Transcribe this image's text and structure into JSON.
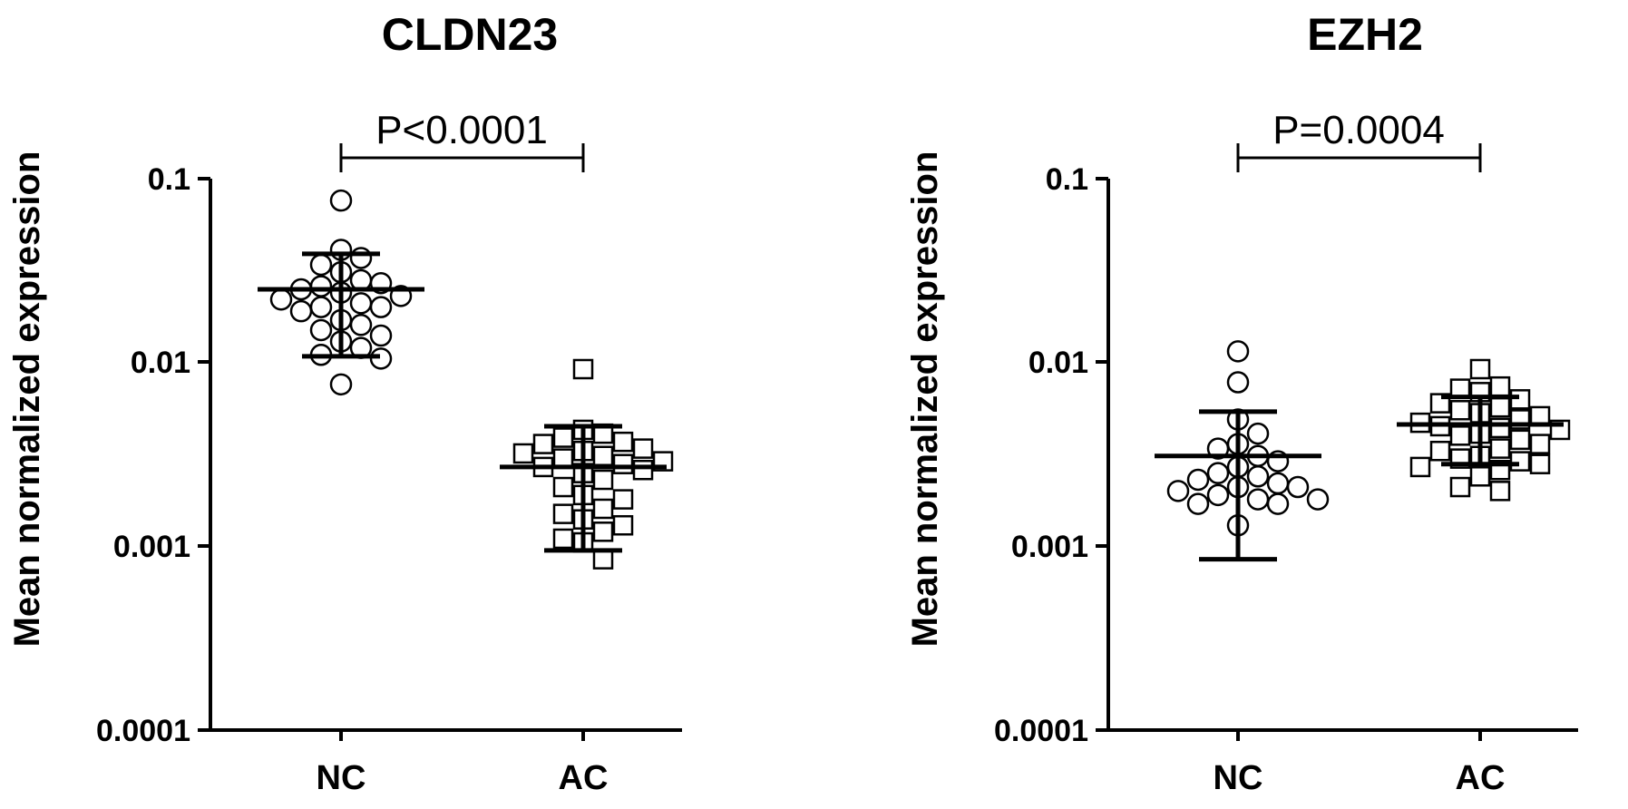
{
  "chart_data": [
    {
      "type": "scatter",
      "title": "CLDN23",
      "ylabel": "Mean normalized expression",
      "yscale": "log",
      "ylim": [
        0.0001,
        0.1
      ],
      "yticks": [
        "0.1",
        "0.01",
        "0.001",
        "0.0001"
      ],
      "categories": [
        "NC",
        "AC"
      ],
      "annotation": "P<0.0001",
      "series": [
        {
          "marker": "circle",
          "values": [
            0.076,
            0.041,
            0.037,
            0.034,
            0.031,
            0.028,
            0.027,
            0.026,
            0.025,
            0.024,
            0.023,
            0.022,
            0.021,
            0.02,
            0.02,
            0.019,
            0.017,
            0.016,
            0.015,
            0.014,
            0.013,
            0.012,
            0.011,
            0.0105,
            0.0076
          ],
          "summary": {
            "mean": 0.025,
            "sd_upper": 0.039,
            "sd_lower": 0.0108
          }
        },
        {
          "marker": "square",
          "values": [
            0.0092,
            0.0043,
            0.0041,
            0.0039,
            0.0037,
            0.0036,
            0.0034,
            0.0033,
            0.0032,
            0.0031,
            0.003,
            0.0029,
            0.0028,
            0.0027,
            0.0026,
            0.0025,
            0.0023,
            0.0021,
            0.0019,
            0.0018,
            0.0016,
            0.0015,
            0.0014,
            0.0013,
            0.0012,
            0.0011,
            0.00105,
            0.00085
          ],
          "summary": {
            "mean": 0.0027,
            "sd_upper": 0.0045,
            "sd_lower": 0.00095
          }
        }
      ]
    },
    {
      "type": "scatter",
      "title": "EZH2",
      "ylabel": "Mean normalized expression",
      "yscale": "log",
      "ylim": [
        0.0001,
        0.1
      ],
      "yticks": [
        "0.1",
        "0.01",
        "0.001",
        "0.0001"
      ],
      "categories": [
        "NC",
        "AC"
      ],
      "annotation": "P=0.0004",
      "series": [
        {
          "marker": "circle",
          "values": [
            0.0115,
            0.0078,
            0.0049,
            0.0041,
            0.0036,
            0.0034,
            0.0031,
            0.0029,
            0.0027,
            0.0025,
            0.0024,
            0.0023,
            0.0022,
            0.0021,
            0.0021,
            0.002,
            0.0019,
            0.0018,
            0.0018,
            0.0017,
            0.0017,
            0.0013
          ],
          "summary": {
            "mean": 0.0031,
            "sd_upper": 0.0054,
            "sd_lower": 0.00085
          }
        },
        {
          "marker": "square",
          "values": [
            0.0092,
            0.0074,
            0.0072,
            0.0069,
            0.0063,
            0.006,
            0.0057,
            0.0055,
            0.0053,
            0.0051,
            0.0049,
            0.0047,
            0.0045,
            0.0044,
            0.0043,
            0.0041,
            0.004,
            0.0038,
            0.0036,
            0.0034,
            0.0033,
            0.0031,
            0.003,
            0.0029,
            0.0028,
            0.0027,
            0.0026,
            0.0024,
            0.0021,
            0.002
          ],
          "summary": {
            "mean": 0.0046,
            "sd_upper": 0.0065,
            "sd_lower": 0.0028
          }
        }
      ]
    }
  ]
}
